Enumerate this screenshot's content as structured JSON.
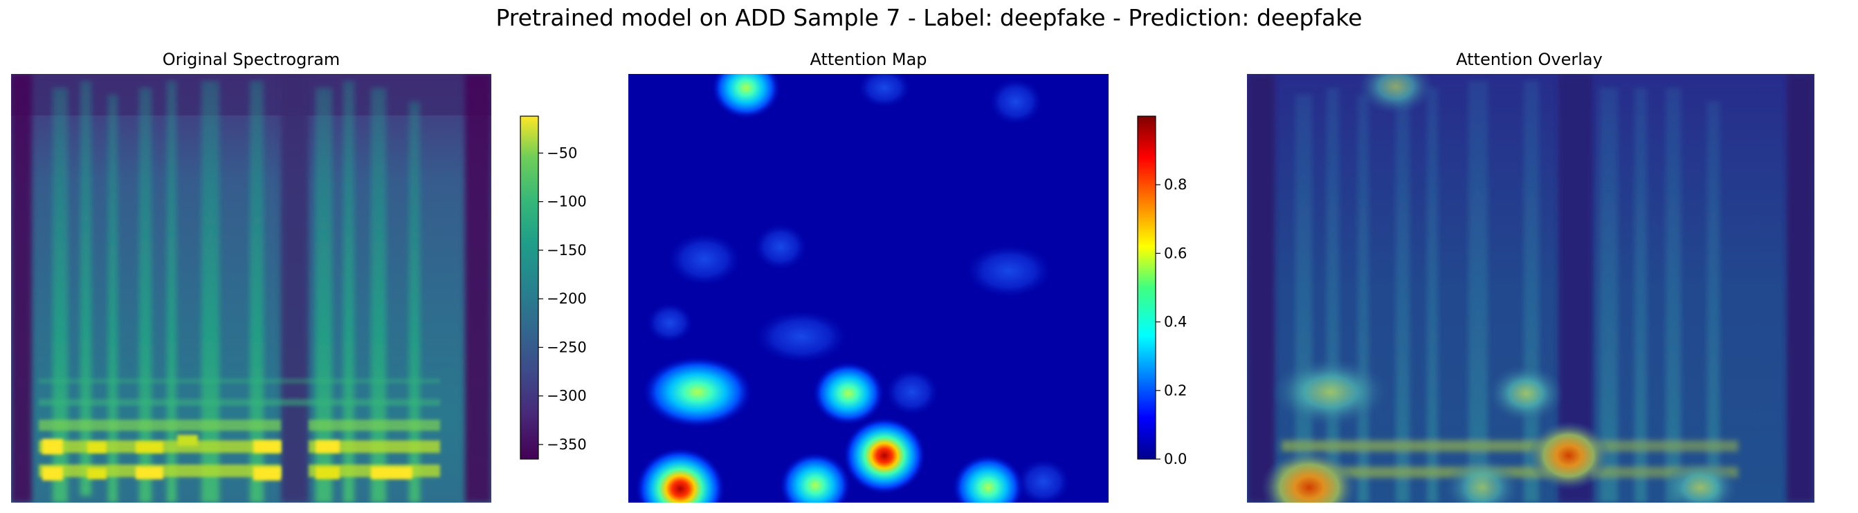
{
  "figure": {
    "suptitle": "Pretrained model on ADD Sample 7 - Label: deepfake - Prediction: deepfake"
  },
  "chart_data": [
    {
      "type": "heatmap",
      "title": "Original Spectrogram",
      "colormap": "viridis",
      "axes": "off",
      "colorbar": {
        "vmin": -365,
        "vmax": -12,
        "ticks": [
          -50,
          -100,
          -150,
          -200,
          -250,
          -300,
          -350
        ],
        "tick_labels": [
          "−50",
          "−100",
          "−150",
          "−200",
          "−250",
          "−300",
          "−350"
        ]
      }
    },
    {
      "type": "heatmap",
      "title": "Attention Map",
      "colormap": "jet",
      "axes": "off",
      "colorbar": {
        "vmin": 0.0,
        "vmax": 1.0,
        "ticks": [
          0.0,
          0.2,
          0.4,
          0.6,
          0.8
        ],
        "tick_labels": [
          "0.0",
          "0.2",
          "0.4",
          "0.6",
          "0.8"
        ]
      }
    },
    {
      "type": "heatmap",
      "title": "Attention Overlay",
      "colormap": "viridis + jet overlay",
      "axes": "off"
    }
  ],
  "colors": {
    "viridis_low": "#440154",
    "viridis_mid": "#21918c",
    "viridis_high": "#fde725",
    "jet_low": "#00008b",
    "jet_high": "#800000"
  }
}
